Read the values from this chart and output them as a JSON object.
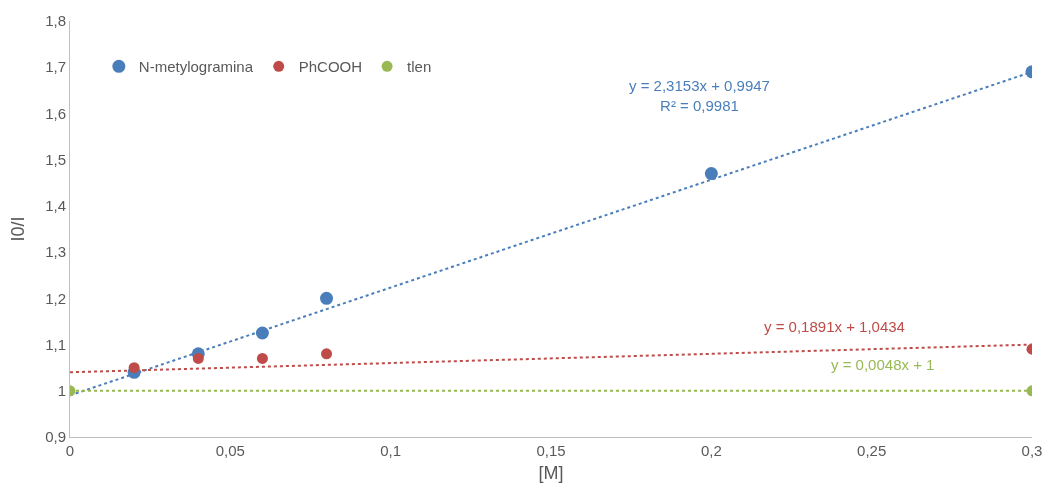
{
  "chart_data": {
    "type": "scatter",
    "xlabel": "[M]",
    "ylabel": "I0/I",
    "legend": "top left",
    "marker": "circle",
    "xlim": [
      0,
      0.3
    ],
    "ylim": [
      0.9,
      1.8
    ],
    "xticks": [
      0,
      {
        "value": 0.05,
        "label": "0,05"
      },
      {
        "value": 0.1,
        "label": "0,1"
      },
      {
        "value": 0.15,
        "label": "0,15"
      },
      {
        "value": 0.2,
        "label": "0,2"
      },
      {
        "value": 0.25,
        "label": "0,25"
      },
      {
        "value": 0.3,
        "label": "0,3"
      }
    ],
    "yticks": [
      {
        "value": 0.9,
        "label": "0,9"
      },
      1,
      {
        "value": 1.1,
        "label": "1,1"
      },
      {
        "value": 1.2,
        "label": "1,2"
      },
      {
        "value": 1.3,
        "label": "1,3"
      },
      {
        "value": 1.4,
        "label": "1,4"
      },
      {
        "value": 1.5,
        "label": "1,5"
      },
      {
        "value": 1.6,
        "label": "1,6"
      },
      {
        "value": 1.7,
        "label": "1,7"
      },
      {
        "value": 1.8,
        "label": "1,8"
      }
    ],
    "series": [
      {
        "type": "line",
        "color": "#4a7ebb",
        "marker": "none",
        "line_style": "dotted",
        "x": [
          0,
          0.3
        ],
        "values": [
          0.99,
          1.69
        ]
      },
      {
        "type": "line",
        "color": "#be4b48",
        "marker": "none",
        "line_style": "dotted",
        "x": [
          0,
          0.3
        ],
        "values": [
          1.04,
          1.1
        ]
      },
      {
        "type": "line",
        "color": "#98b954",
        "marker": "none",
        "line_style": "dotted",
        "x": [
          0,
          0.3
        ],
        "values": [
          1.0,
          1.0
        ]
      },
      {
        "name": "N-metylogramina",
        "color": "#4a7ebb",
        "x": [
          0.02,
          0.04,
          0.06,
          0.08,
          0.2,
          0.3
        ],
        "values": [
          1.04,
          1.08,
          1.125,
          1.2,
          1.47,
          1.69
        ]
      },
      {
        "name": "PhCOOH",
        "color": "#be4b48",
        "x": [
          0.02,
          0.04,
          0.06,
          0.08,
          0.3
        ],
        "values": [
          1.05,
          1.07,
          1.07,
          1.08,
          1.09
        ]
      },
      {
        "name": "tlen",
        "color": "#98b954",
        "x": [
          0,
          0.3
        ],
        "values": [
          1.0,
          1.0
        ]
      }
    ],
    "annotations": [
      "y = 2,3153x + 0,9947\nR² = 0,9981",
      "y = 0,1891x + 1,0434",
      "y = 0,0048x + 1"
    ]
  }
}
